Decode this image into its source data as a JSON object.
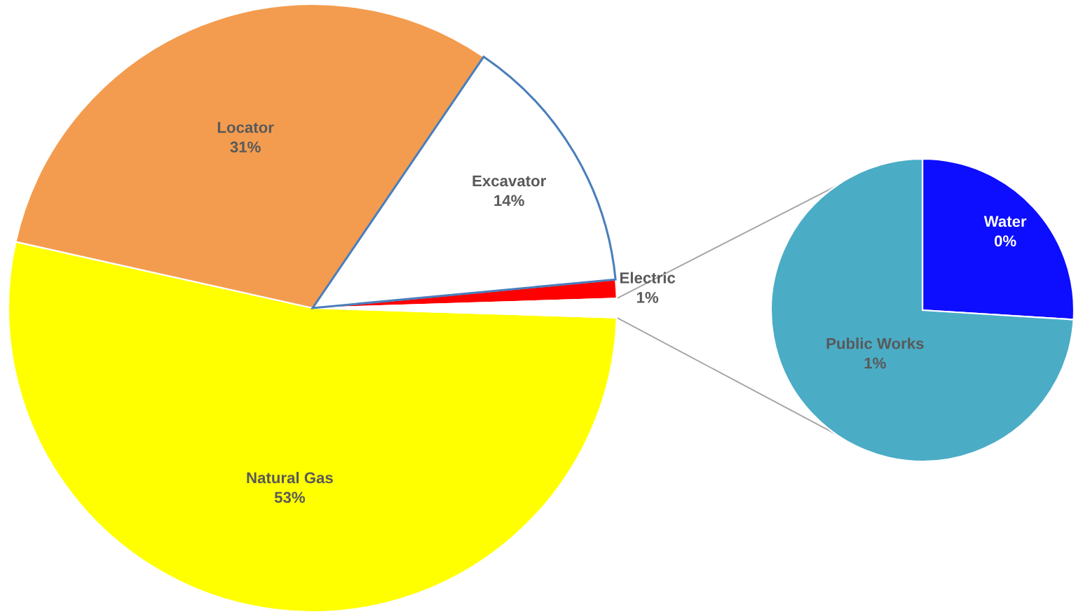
{
  "chart_data": [
    {
      "type": "pie",
      "categories": [
        "Natural Gas",
        "Locator",
        "Excavator",
        "Electric",
        null
      ],
      "values": [
        53,
        31,
        14,
        1,
        1
      ],
      "colors": [
        "#ffff00",
        "#f39c4f",
        "#ffffff",
        "#ff0000",
        "#ffffff"
      ],
      "value_labels": [
        "53%",
        "31%",
        "14%",
        "1%",
        null
      ]
    },
    {
      "type": "pie",
      "categories": [
        "Water",
        "Public Works"
      ],
      "values": [
        0.26,
        0.74
      ],
      "colors": [
        "#0d0dff",
        "#4bacc6"
      ],
      "value_labels": [
        "0%",
        "1%"
      ]
    }
  ]
}
